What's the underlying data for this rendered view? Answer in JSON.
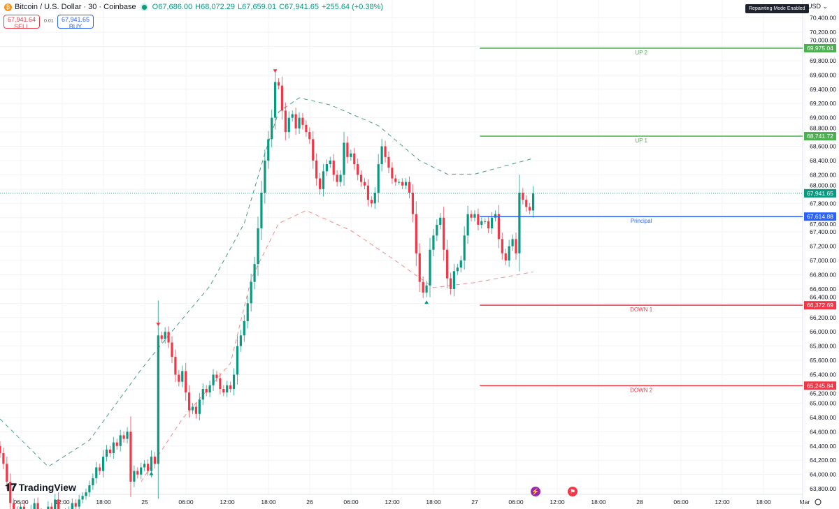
{
  "header": {
    "symbol": "Bitcoin / U.S. Dollar · 30 · Coinbase",
    "open": "O67,686.00",
    "high": "H68,072.29",
    "low": "L67,659.01",
    "close": "C67,941.65",
    "change": "+255.64 (+0.38%)",
    "coin_icon": "bitcoin-icon"
  },
  "trade": {
    "sell_price": "67,941.64",
    "sell_label": "SELL",
    "spread": "0.01",
    "buy_price": "67,941.65",
    "buy_label": "BUY"
  },
  "badge": "Repainting Mode Enabled",
  "currency": "USD",
  "logo": "TradingView",
  "colors": {
    "up": "#089981",
    "down": "#f23645",
    "level_up": "#4caf50",
    "level_principal": "#2962ff",
    "level_down": "#f23645",
    "upper_band": "#4a9a8a",
    "lower_band": "#f28b8b"
  },
  "chart_data": {
    "type": "candlestick",
    "interval": "30m",
    "first_candle": "24 03:00",
    "ylim": [
      63700,
      70500
    ],
    "grid": true,
    "y_ticks": [
      "70,400.00",
      "70,200.00",
      "70,000.00",
      "69,800.00",
      "69,600.00",
      "69,400.00",
      "69,200.00",
      "69,000.00",
      "68,800.00",
      "68,600.00",
      "68,400.00",
      "68,200.00",
      "68,000.00",
      "67,800.00",
      "67,600.00",
      "67,400.00",
      "67,200.00",
      "67,000.00",
      "66,800.00",
      "66,600.00",
      "66,400.00",
      "66,200.00",
      "66,000.00",
      "65,800.00",
      "65,600.00",
      "65,400.00",
      "65,200.00",
      "65,000.00",
      "64,800.00",
      "64,600.00",
      "64,400.00",
      "64,200.00",
      "64,000.00",
      "63,800.00"
    ],
    "x_ticks": [
      "06:00",
      "12:00",
      "18:00",
      "25",
      "06:00",
      "12:00",
      "18:00",
      "26",
      "06:00",
      "12:00",
      "18:00",
      "27",
      "06:00",
      "12:00",
      "18:00",
      "28",
      "06:00",
      "12:00",
      "18:00",
      "Mar"
    ],
    "close": [
      64300,
      64150,
      63900,
      63600,
      63500,
      63450,
      63550,
      63400,
      63350,
      63500,
      63600,
      63450,
      63300,
      63400,
      63550,
      63500,
      63650,
      63400,
      63300,
      63450,
      63500,
      63600,
      63550,
      63650,
      63700,
      63750,
      63850,
      63950,
      64100,
      64050,
      64250,
      64350,
      64300,
      64450,
      64400,
      64550,
      64500,
      64600,
      63900,
      64050,
      64000,
      64100,
      64150,
      64050,
      64250,
      64150,
      65950,
      65900,
      66000,
      65850,
      65650,
      65400,
      65300,
      65450,
      65150,
      64900,
      64950,
      64850,
      65050,
      65200,
      65150,
      65250,
      65400,
      65350,
      65200,
      65150,
      65250,
      65200,
      65400,
      65800,
      65950,
      66150,
      66400,
      66700,
      66950,
      67450,
      67950,
      68400,
      68700,
      69000,
      69500,
      69450,
      69100,
      68800,
      69000,
      69050,
      68850,
      69000,
      68900,
      68800,
      68700,
      68400,
      68150,
      68000,
      68250,
      68350,
      68400,
      68200,
      68100,
      68200,
      68650,
      68450,
      68500,
      68350,
      68200,
      68100,
      68050,
      67850,
      67800,
      67950,
      68350,
      68600,
      68450,
      68300,
      68150,
      68100,
      68100,
      68050,
      68100,
      67950,
      67650,
      67100,
      66700,
      66550,
      66650,
      67150,
      67350,
      67500,
      67600,
      67150,
      66750,
      66600,
      66850,
      66900,
      67000,
      67350,
      67650,
      67600,
      67650,
      67500,
      67550,
      67550,
      67450,
      67600,
      67650,
      67300,
      67100,
      67000,
      67200,
      67300,
      67100,
      67950,
      67850,
      67750,
      67700,
      67941.65
    ],
    "upper_band": [
      [
        0,
        64780
      ],
      [
        14,
        64110
      ],
      [
        26,
        64480
      ],
      [
        41,
        65470
      ],
      [
        49,
        65950
      ],
      [
        61,
        66640
      ],
      [
        71,
        67520
      ],
      [
        77,
        68500
      ],
      [
        81,
        69080
      ],
      [
        87,
        69280
      ],
      [
        96,
        69180
      ],
      [
        110,
        68890
      ],
      [
        122,
        68400
      ],
      [
        130,
        68210
      ],
      [
        138,
        68210
      ],
      [
        155,
        68430
      ]
    ],
    "lower_band": [
      [
        41,
        63900
      ],
      [
        53,
        64780
      ],
      [
        67,
        65560
      ],
      [
        73,
        66740
      ],
      [
        81,
        67520
      ],
      [
        89,
        67700
      ],
      [
        102,
        67420
      ],
      [
        114,
        67030
      ],
      [
        126,
        66620
      ],
      [
        138,
        66690
      ],
      [
        155,
        66840
      ]
    ],
    "signals": [
      {
        "type": "sell",
        "index": 46
      },
      {
        "type": "buy",
        "index": 44
      },
      {
        "type": "sell",
        "index": 80
      },
      {
        "type": "buy",
        "index": 124
      }
    ],
    "levels": [
      {
        "label": "UP 2",
        "value": 69975.04,
        "text": "69,975.04",
        "kind": "up"
      },
      {
        "label": "UP 1",
        "value": 68741.72,
        "text": "68,741.72",
        "kind": "up"
      },
      {
        "label": "Principal",
        "value": 67614.88,
        "text": "67,614.88",
        "kind": "principal"
      },
      {
        "label": "DOWN 1",
        "value": 66372.69,
        "text": "66,372.69",
        "kind": "down"
      },
      {
        "label": "DOWN 2",
        "value": 65245.84,
        "text": "65,245.84",
        "kind": "down"
      }
    ],
    "last_price": "67,941.65"
  }
}
